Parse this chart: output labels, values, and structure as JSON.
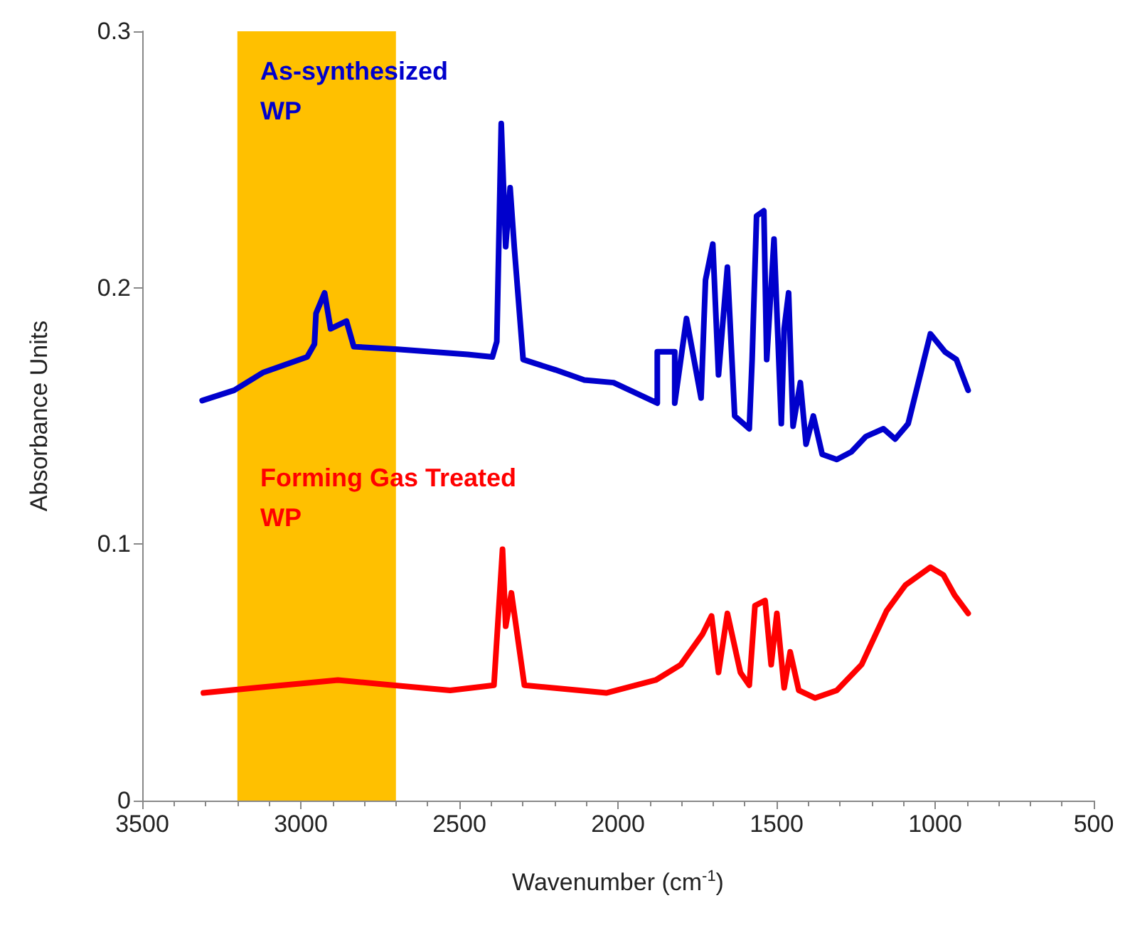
{
  "chart_data": {
    "type": "line",
    "xlabel": "Wavenumber (cm$^{-1}$)",
    "ylabel": "Absorbance Units",
    "xlim": [
      3500,
      500
    ],
    "xticks": [
      3500,
      3000,
      2500,
      2000,
      1500,
      1000,
      500
    ],
    "ylim": [
      0,
      0.3
    ],
    "yticks": [
      0,
      0.1,
      0.2,
      0.3
    ],
    "grid": false,
    "marker": "none",
    "line_style": "solid",
    "bands": [
      {
        "axis": "x",
        "from": 3200,
        "to": 2700,
        "color": "#ffc000"
      }
    ],
    "series": [
      {
        "name": "As-synthesized WP",
        "color": "#0000cc",
        "x": [
          3311,
          3210,
          3118,
          3026,
          2980,
          2957,
          2952,
          2925,
          2906,
          2856,
          2833,
          2695,
          2474,
          2396,
          2382,
          2368,
          2354,
          2340,
          2327,
          2299,
          2198,
          2106,
          2014,
          1876,
          1876,
          1821,
          1821,
          1784,
          1738,
          1724,
          1701,
          1683,
          1655,
          1632,
          1586,
          1577,
          1563,
          1540,
          1531,
          1508,
          1485,
          1476,
          1462,
          1448,
          1425,
          1407,
          1384,
          1356,
          1310,
          1264,
          1218,
          1163,
          1126,
          1085,
          1015,
          969,
          933,
          896
        ],
        "values": [
          0.156,
          0.16,
          0.167,
          0.171,
          0.173,
          0.178,
          0.19,
          0.198,
          0.184,
          0.187,
          0.177,
          0.176,
          0.174,
          0.173,
          0.179,
          0.264,
          0.216,
          0.239,
          0.216,
          0.172,
          0.168,
          0.164,
          0.163,
          0.155,
          0.175,
          0.175,
          0.155,
          0.188,
          0.157,
          0.203,
          0.217,
          0.166,
          0.208,
          0.15,
          0.145,
          0.172,
          0.228,
          0.23,
          0.172,
          0.219,
          0.147,
          0.184,
          0.198,
          0.146,
          0.163,
          0.139,
          0.15,
          0.135,
          0.133,
          0.136,
          0.142,
          0.145,
          0.141,
          0.147,
          0.182,
          0.175,
          0.172,
          0.16
        ]
      },
      {
        "name": "Forming Gas Treated WP",
        "color": "#ff0000",
        "x": [
          3307,
          3141,
          2883,
          2709,
          2529,
          2391,
          2364,
          2354,
          2336,
          2295,
          2037,
          1881,
          1802,
          1733,
          1705,
          1683,
          1655,
          1614,
          1586,
          1568,
          1536,
          1517,
          1499,
          1476,
          1457,
          1430,
          1379,
          1310,
          1232,
          1153,
          1094,
          1015,
          974,
          938,
          896
        ],
        "values": [
          0.042,
          0.044,
          0.047,
          0.045,
          0.043,
          0.045,
          0.098,
          0.068,
          0.081,
          0.045,
          0.042,
          0.047,
          0.053,
          0.065,
          0.072,
          0.05,
          0.073,
          0.05,
          0.045,
          0.076,
          0.078,
          0.053,
          0.073,
          0.044,
          0.058,
          0.043,
          0.04,
          0.043,
          0.053,
          0.074,
          0.084,
          0.091,
          0.088,
          0.08,
          0.073
        ]
      }
    ]
  }
}
